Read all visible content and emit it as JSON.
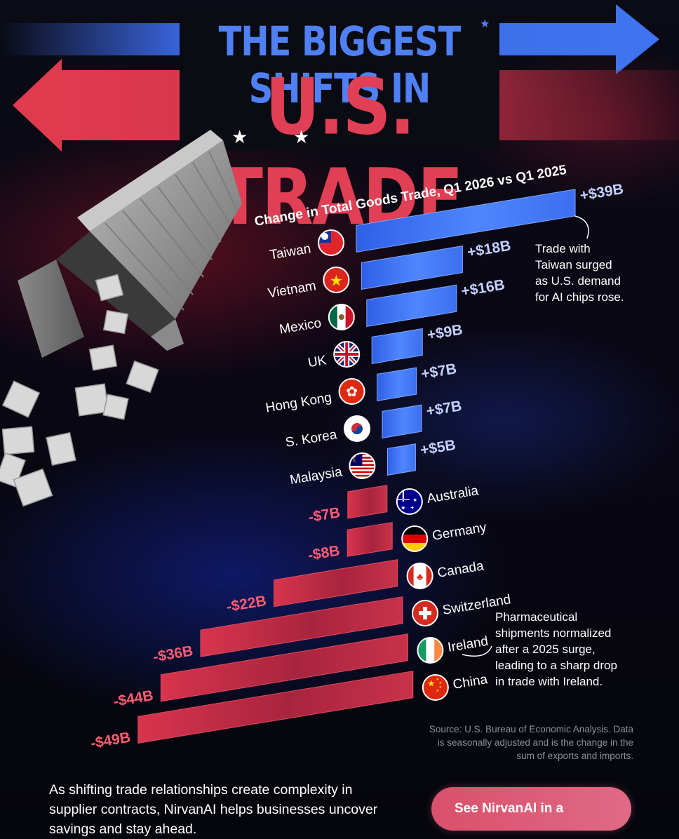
{
  "title": {
    "line1": "THE BIGGEST SHIFTS IN",
    "line2": "U.S. TRADE"
  },
  "annotations": {
    "taiwan": [
      "Trade with",
      "Taiwan surged",
      "as U.S. demand",
      "for AI chips rose."
    ],
    "ireland": [
      "Pharmaceutical",
      "shipments normalized",
      "after a 2025 surge,",
      "leading to a sharp drop",
      "in trade with Ireland."
    ]
  },
  "source": [
    "Source: U.S. Bureau of Economic Analysis. Data",
    "is seasonally adjusted and is the change in the",
    "sum of exports and imports."
  ],
  "footer": {
    "text": "As shifting trade relationships create complexity in supplier contracts, NirvanAI helps businesses uncover savings and stay ahead.",
    "cta_label": "See NirvanAI in a"
  },
  "colors": {
    "positive": "#3f73f0",
    "negative": "#c8324a",
    "background": "#06070d"
  },
  "chart_data": {
    "type": "bar",
    "title": "Change in Total Goods Trade, Q1 2026 vs Q1 2025",
    "unit": "USD billions",
    "categories": [
      "Taiwan",
      "Vietnam",
      "Mexico",
      "UK",
      "Hong Kong",
      "S. Korea",
      "Malaysia",
      "Australia",
      "Germany",
      "Canada",
      "Switzerland",
      "Ireland",
      "China"
    ],
    "values": [
      39,
      18,
      16,
      9,
      7,
      7,
      5,
      -7,
      -8,
      -22,
      -36,
      -44,
      -49
    ],
    "labels": [
      "+$39B",
      "+$18B",
      "+$16B",
      "+$9B",
      "+$7B",
      "+$7B",
      "+$5B",
      "-$7B",
      "-$8B",
      "-$22B",
      "-$36B",
      "-$44B",
      "-$49B"
    ],
    "flags": [
      "taiwan-flag-icon",
      "vietnam-flag-icon",
      "mexico-flag-icon",
      "uk-flag-icon",
      "hong-kong-flag-icon",
      "south-korea-flag-icon",
      "malaysia-flag-icon",
      "australia-flag-icon",
      "germany-flag-icon",
      "canada-flag-icon",
      "switzerland-flag-icon",
      "ireland-flag-icon",
      "china-flag-icon"
    ],
    "orientation": "horizontal, diverging from a tilted zero line"
  }
}
